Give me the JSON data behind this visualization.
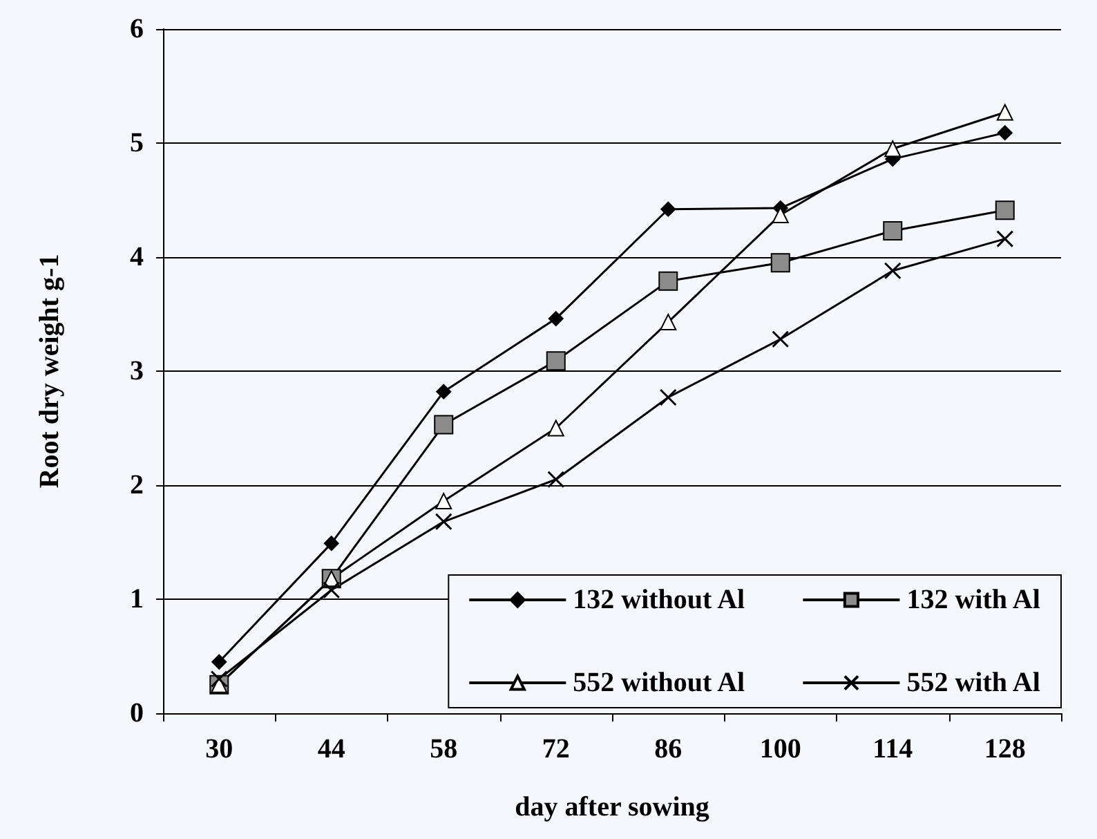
{
  "chart_data": {
    "type": "line",
    "xlabel": "day after sowing",
    "ylabel": "Root dry weight g-1",
    "categories": [
      "30",
      "44",
      "58",
      "72",
      "86",
      "100",
      "114",
      "128"
    ],
    "series": [
      {
        "name": "132 without Al",
        "color": "#000000",
        "marker": "diamond",
        "values": [
          0.45,
          1.49,
          2.82,
          3.46,
          4.42,
          4.43,
          4.86,
          5.09
        ]
      },
      {
        "name": "132 with Al",
        "color": "#000000",
        "marker": "square",
        "values": [
          0.25,
          1.18,
          2.53,
          3.09,
          3.79,
          3.95,
          4.23,
          4.41
        ]
      },
      {
        "name": "552 without Al",
        "color": "#000000",
        "marker": "triangle",
        "values": [
          0.25,
          1.18,
          1.86,
          2.5,
          3.43,
          4.37,
          4.95,
          5.27
        ]
      },
      {
        "name": "552 with Al",
        "color": "#000000",
        "marker": "cross",
        "values": [
          0.3,
          1.08,
          1.68,
          2.05,
          2.77,
          3.28,
          3.88,
          4.16
        ]
      }
    ],
    "ylim": [
      0,
      6
    ],
    "yticks": [
      0,
      1,
      2,
      3,
      4,
      5,
      6
    ],
    "grid": "y",
    "legend": "bottom right",
    "line_style": "solid"
  }
}
